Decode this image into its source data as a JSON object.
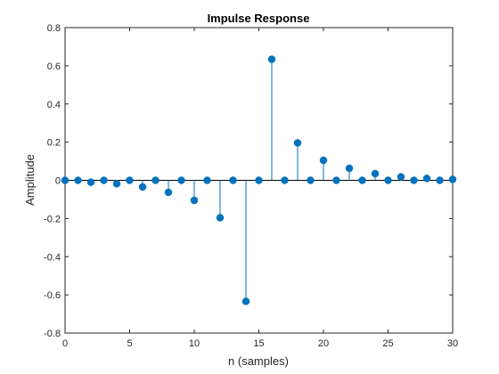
{
  "chart_data": {
    "type": "stem",
    "title": "Impulse Response",
    "xlabel": "n (samples)",
    "ylabel": "Amplitude",
    "xlim": [
      0,
      30
    ],
    "ylim": [
      -0.8,
      0.8
    ],
    "xticks": [
      0,
      5,
      10,
      15,
      20,
      25,
      30
    ],
    "xtick_labels": [
      "0",
      "5",
      "10",
      "15",
      "20",
      "25",
      "30"
    ],
    "yticks": [
      -0.8,
      -0.6,
      -0.4,
      -0.2,
      0,
      0.2,
      0.4,
      0.6,
      0.8
    ],
    "ytick_labels": [
      "-0.8",
      "-0.6",
      "-0.4",
      "-0.2",
      "0",
      "0.2",
      "0.4",
      "0.6",
      "0.8"
    ],
    "grid": false,
    "series": [
      {
        "x": [
          0,
          1,
          2,
          3,
          4,
          5,
          6,
          7,
          8,
          9,
          10,
          11,
          12,
          13,
          14,
          15,
          16,
          17,
          18,
          19,
          20,
          21,
          22,
          23,
          24,
          25,
          26,
          27,
          28,
          29,
          30
        ],
        "values": [
          0,
          0,
          -0.01,
          0,
          -0.018,
          0,
          -0.035,
          0,
          -0.063,
          0,
          -0.105,
          0,
          -0.196,
          0,
          -0.634,
          0,
          0.634,
          0,
          0.196,
          0,
          0.105,
          0,
          0.063,
          0,
          0.035,
          0,
          0.018,
          0,
          0.01,
          0,
          0.005
        ]
      }
    ],
    "colors": {
      "series": "#0072BD",
      "axes": "#262626"
    }
  }
}
